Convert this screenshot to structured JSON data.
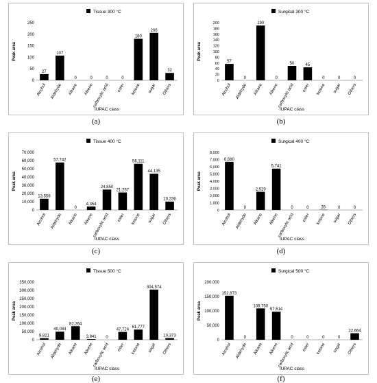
{
  "chart_data": [
    {
      "type": "bar",
      "legend": "Tissue 300 °C",
      "ylabel": "Peak area",
      "xlabel": "IUPAC class",
      "caption": "(a)",
      "categories": [
        "Alcohol",
        "Aldehyde",
        "Alkane",
        "Alkene",
        "carboxylic acid",
        "ester",
        "ketone",
        "sugar",
        "Others"
      ],
      "values": [
        27,
        107,
        0,
        0,
        0,
        0,
        180,
        206,
        32
      ],
      "value_labels": [
        "27",
        "107",
        "0",
        "0",
        "0",
        "0",
        "180",
        "206",
        "32"
      ],
      "ylim": [
        0,
        250
      ],
      "ytick_labels": [
        "0",
        "50",
        "100",
        "150",
        "200",
        "250"
      ]
    },
    {
      "type": "bar",
      "legend": "Surgical 300 °C",
      "ylabel": "Peak area",
      "xlabel": "IUPAC class",
      "caption": "(b)",
      "categories": [
        "Alcohol",
        "Aldehyde",
        "Alkane",
        "Alkene",
        "carboxylic acid",
        "ester",
        "ketone",
        "sugar",
        "Others"
      ],
      "values": [
        57,
        0,
        190,
        0,
        50,
        45,
        0,
        0,
        0
      ],
      "value_labels": [
        "57",
        "0",
        "190",
        "0",
        "50",
        "45",
        "0",
        "0",
        "0"
      ],
      "ylim": [
        0,
        200
      ],
      "ytick_labels": [
        "0",
        "20",
        "40",
        "60",
        "80",
        "100",
        "120",
        "140",
        "160",
        "180",
        "200"
      ]
    },
    {
      "type": "bar",
      "legend": "Tissue 400 °C",
      "ylabel": "Peak area",
      "xlabel": "IUPAC class",
      "caption": "(c)",
      "categories": [
        "Alcohol",
        "Aldehyde",
        "Alkane",
        "Alkene",
        "carboxylic acid",
        "ester",
        "ketone",
        "sugar",
        "Others"
      ],
      "values": [
        13559,
        57742,
        0,
        4354,
        24850,
        21257,
        56111,
        44135,
        10236
      ],
      "value_labels": [
        "13,559",
        "57,742",
        "0",
        "4,354",
        "24,850",
        "21,257",
        "56,111",
        "44,135",
        "10,236"
      ],
      "ylim": [
        0,
        70000
      ],
      "ytick_labels": [
        "0",
        "10,000",
        "20,000",
        "30,000",
        "40,000",
        "50,000",
        "60,000",
        "70,000"
      ]
    },
    {
      "type": "bar",
      "legend": "Surgical 400 °C",
      "ylabel": "Peak area",
      "xlabel": "IUPAC class",
      "caption": "(d)",
      "categories": [
        "Alcohol",
        "Aldehyde",
        "Alkane",
        "Alkene",
        "carboxylic acid",
        "ester",
        "ketone",
        "sugar",
        "Others"
      ],
      "values": [
        6680,
        0,
        2529,
        5741,
        0,
        0,
        35,
        0,
        0
      ],
      "value_labels": [
        "6,680",
        "0",
        "2,529",
        "5,741",
        "0",
        "0",
        "35",
        "0",
        "0"
      ],
      "ylim": [
        0,
        8000
      ],
      "ytick_labels": [
        "0",
        "1,000",
        "2,000",
        "3,000",
        "4,000",
        "5,000",
        "6,000",
        "7,000",
        "8,000"
      ]
    },
    {
      "type": "bar",
      "legend": "Tissue 500 °C",
      "ylabel": "Peak area",
      "xlabel": "IUPAC class",
      "caption": "(e)",
      "categories": [
        "Alcohol",
        "Aldehyde",
        "Alkane",
        "Alkene",
        "carboxylic acid",
        "ester",
        "ketone",
        "sugar",
        "Others"
      ],
      "values": [
        9821,
        49084,
        82264,
        3841,
        0,
        47724,
        61777,
        304574,
        10373
      ],
      "value_labels": [
        "9,821",
        "49,084",
        "82,264",
        "3,841",
        "0",
        "47,724",
        "61,777",
        "304,574",
        "10,373"
      ],
      "ylim": [
        0,
        350000
      ],
      "ytick_labels": [
        "0",
        "50,000",
        "100,000",
        "150,000",
        "200,000",
        "250,000",
        "300,000",
        "350,000"
      ]
    },
    {
      "type": "bar",
      "legend": "Surgical 500 °C",
      "ylabel": "Peak area",
      "xlabel": "IUPAC class",
      "caption": "(f)",
      "categories": [
        "Alcohol",
        "Aldehyde",
        "Alkane",
        "Alkene",
        "carboxylic acid",
        "ester",
        "ketone",
        "sugar",
        "Others"
      ],
      "values": [
        152873,
        0,
        108750,
        97514,
        0,
        0,
        0,
        0,
        22664
      ],
      "value_labels": [
        "152,873",
        "0",
        "108,750",
        "97,514",
        "0",
        "0",
        "0",
        "0",
        "22,664"
      ],
      "ylim": [
        0,
        200000
      ],
      "ytick_labels": [
        "0",
        "50,000",
        "100,000",
        "150,000",
        "200,000"
      ]
    }
  ]
}
